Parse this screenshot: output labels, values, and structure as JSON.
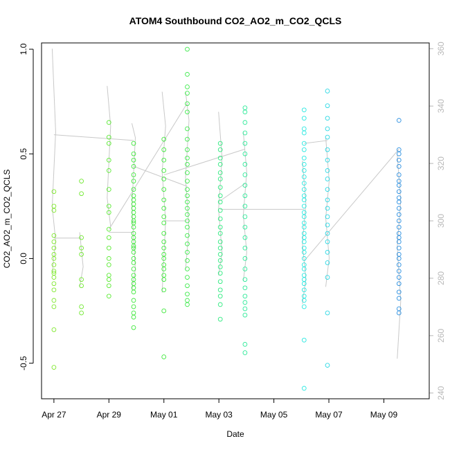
{
  "chart_data": {
    "type": "scatter",
    "title": "ATOM4 Southbound CO2_AO2_m_CO2_QCLS",
    "xlabel": "Date",
    "ylabel": "CO2_AO2_m_CO2_QCLS",
    "ylim": [
      -0.67,
      1.03
    ],
    "y_ticks": [
      {
        "value": -0.5,
        "label": "-0.5"
      },
      {
        "value": 0.0,
        "label": "0.0"
      },
      {
        "value": 0.5,
        "label": "0.5"
      },
      {
        "value": 1.0,
        "label": "1.0"
      }
    ],
    "x_range_days": [
      -0.45,
      13.65
    ],
    "x_ticks": [
      {
        "value": 0,
        "label": "Apr 27"
      },
      {
        "value": 2,
        "label": "Apr 29"
      },
      {
        "value": 4,
        "label": "May 01"
      },
      {
        "value": 6,
        "label": "May 03"
      },
      {
        "value": 8,
        "label": "May 05"
      },
      {
        "value": 10,
        "label": "May 07"
      },
      {
        "value": 12,
        "label": "May 09"
      }
    ],
    "y2lim": [
      238,
      362
    ],
    "y2_ticks": [
      {
        "value": 240,
        "label": "240"
      },
      {
        "value": 260,
        "label": "260"
      },
      {
        "value": 280,
        "label": "280"
      },
      {
        "value": 300,
        "label": "300"
      },
      {
        "value": 320,
        "label": "320"
      },
      {
        "value": 340,
        "label": "340"
      },
      {
        "value": 360,
        "label": "360"
      }
    ],
    "grid": false,
    "secondary_line_color": "#c8c8c8",
    "flights": [
      {
        "x": 0.0,
        "color": "#7fe82d",
        "values": [
          0.32,
          0.25,
          0.23,
          0.11,
          0.08,
          0.05,
          0.02,
          0.0,
          -0.03,
          -0.06,
          -0.07,
          -0.09,
          -0.12,
          -0.15,
          -0.2,
          -0.23,
          -0.34,
          -0.52
        ]
      },
      {
        "x": 1.0,
        "color": "#6ee82d",
        "values": [
          0.37,
          0.31,
          0.1,
          0.05,
          0.02,
          -0.1,
          -0.13,
          -0.23,
          -0.26
        ]
      },
      {
        "x": 2.0,
        "color": "#5aea32",
        "values": [
          0.65,
          0.58,
          0.55,
          0.47,
          0.42,
          0.33,
          0.25,
          0.22,
          0.14,
          0.1,
          0.05,
          0.0,
          -0.03,
          -0.08,
          -0.1,
          -0.13,
          -0.18
        ]
      },
      {
        "x": 2.9,
        "color": "#3ee83a",
        "values": [
          0.55,
          0.5,
          0.47,
          0.44,
          0.4,
          0.37,
          0.33,
          0.3,
          0.28,
          0.26,
          0.24,
          0.2,
          0.17,
          0.15,
          0.12,
          0.1,
          0.08,
          0.05,
          0.03,
          0.0,
          -0.02,
          -0.05,
          -0.08,
          -0.1,
          -0.12,
          -0.16,
          -0.2,
          -0.23,
          -0.26,
          -0.28,
          -0.33,
          0.22,
          0.18,
          0.06,
          -0.14
        ]
      },
      {
        "x": 4.0,
        "color": "#3ee83a",
        "values": [
          0.57,
          0.52,
          0.47,
          0.42,
          0.38,
          0.33,
          0.28,
          0.24,
          0.2,
          0.17,
          0.12,
          0.08,
          0.05,
          0.02,
          0.0,
          -0.03,
          -0.05,
          -0.08,
          -0.1,
          -0.15,
          -0.25,
          -0.47
        ]
      },
      {
        "x": 4.85,
        "color": "#3cea4a",
        "values": [
          1.0,
          0.88,
          0.82,
          0.79,
          0.74,
          0.7,
          0.62,
          0.57,
          0.52,
          0.48,
          0.45,
          0.41,
          0.37,
          0.33,
          0.3,
          0.27,
          0.24,
          0.21,
          0.18,
          0.15,
          0.11,
          0.07,
          0.03,
          -0.01,
          -0.05,
          -0.09,
          -0.13,
          -0.17,
          -0.2,
          -0.22
        ]
      },
      {
        "x": 6.05,
        "color": "#2cea7e",
        "values": [
          0.55,
          0.52,
          0.48,
          0.45,
          0.41,
          0.38,
          0.34,
          0.3,
          0.27,
          0.23,
          0.19,
          0.15,
          0.12,
          0.08,
          0.05,
          0.02,
          -0.01,
          -0.04,
          -0.07,
          -0.11,
          -0.15,
          -0.18,
          -0.22,
          -0.29
        ]
      },
      {
        "x": 6.95,
        "color": "#2cea98",
        "values": [
          0.72,
          0.7,
          0.65,
          0.6,
          0.55,
          0.5,
          0.45,
          0.4,
          0.35,
          0.3,
          0.25,
          0.2,
          0.15,
          0.1,
          0.05,
          0.0,
          -0.05,
          -0.1,
          -0.14,
          -0.18,
          -0.21,
          -0.24,
          -0.27,
          -0.41,
          -0.45
        ]
      },
      {
        "x": 9.1,
        "color": "#27e8e0",
        "values": [
          0.71,
          0.67,
          0.62,
          0.6,
          0.55,
          0.52,
          0.48,
          0.45,
          0.42,
          0.39,
          0.36,
          0.33,
          0.3,
          0.28,
          0.25,
          0.22,
          0.2,
          0.17,
          0.15,
          0.12,
          0.1,
          0.08,
          0.05,
          0.03,
          0.0,
          -0.03,
          -0.05,
          -0.08,
          -0.1,
          -0.12,
          -0.15,
          -0.18,
          -0.2,
          -0.23,
          -0.39,
          -0.62
        ]
      },
      {
        "x": 9.95,
        "color": "#2ad8e4",
        "values": [
          0.8,
          0.73,
          0.67,
          0.62,
          0.58,
          0.52,
          0.47,
          0.42,
          0.38,
          0.33,
          0.28,
          0.24,
          0.2,
          0.16,
          0.12,
          0.08,
          0.03,
          -0.02,
          -0.09,
          -0.26,
          -0.51
        ]
      },
      {
        "x": 12.55,
        "color": "#2a8fe0",
        "values": [
          0.66,
          0.52,
          0.5,
          0.47,
          0.44,
          0.4,
          0.37,
          0.35,
          0.32,
          0.29,
          0.27,
          0.24,
          0.21,
          0.18,
          0.15,
          0.12,
          0.1,
          0.08,
          0.05,
          0.02,
          0.0,
          -0.03,
          -0.06,
          -0.09,
          -0.12,
          -0.16,
          -0.19,
          -0.24,
          -0.26
        ]
      }
    ],
    "secondary_series": [
      {
        "x": 0.0,
        "values": [
          360,
          331,
          305,
          293,
          282
        ]
      },
      {
        "x": 1.0,
        "values": [
          296,
          284,
          277
        ]
      },
      {
        "x": 2.0,
        "values": [
          347,
          333,
          308,
          298
        ]
      },
      {
        "x": 2.9,
        "values": [
          334,
          329,
          305,
          283,
          276
        ]
      },
      {
        "x": 4.0,
        "values": [
          345,
          333,
          317,
          300,
          275
        ]
      },
      {
        "x": 4.85,
        "values": [
          345,
          335,
          315,
          297,
          283
        ]
      },
      {
        "x": 6.05,
        "values": [
          338,
          322,
          304,
          289,
          281
        ]
      },
      {
        "x": 6.95,
        "values": [
          331,
          317,
          302,
          289,
          279
        ]
      },
      {
        "x": 9.1,
        "values": [
          321,
          306,
          292,
          280,
          271
        ]
      },
      {
        "x": 9.95,
        "values": [
          329,
          314,
          301,
          287,
          277
        ]
      },
      {
        "x": 12.55,
        "values": [
          323,
          307,
          291,
          272,
          252
        ]
      }
    ],
    "secondary_connectors": [
      [
        0.0,
        330,
        2.9,
        328
      ],
      [
        0.0,
        294,
        1.0,
        294
      ],
      [
        2.0,
        296,
        2.9,
        296
      ],
      [
        2.0,
        297,
        4.85,
        341
      ],
      [
        2.9,
        319,
        4.85,
        312
      ],
      [
        4.0,
        316,
        6.95,
        325
      ],
      [
        4.0,
        300,
        4.85,
        300
      ],
      [
        6.05,
        304,
        9.1,
        304
      ],
      [
        6.05,
        307,
        6.95,
        313
      ],
      [
        9.1,
        327,
        9.95,
        328
      ],
      [
        9.1,
        286,
        12.55,
        325
      ]
    ]
  }
}
